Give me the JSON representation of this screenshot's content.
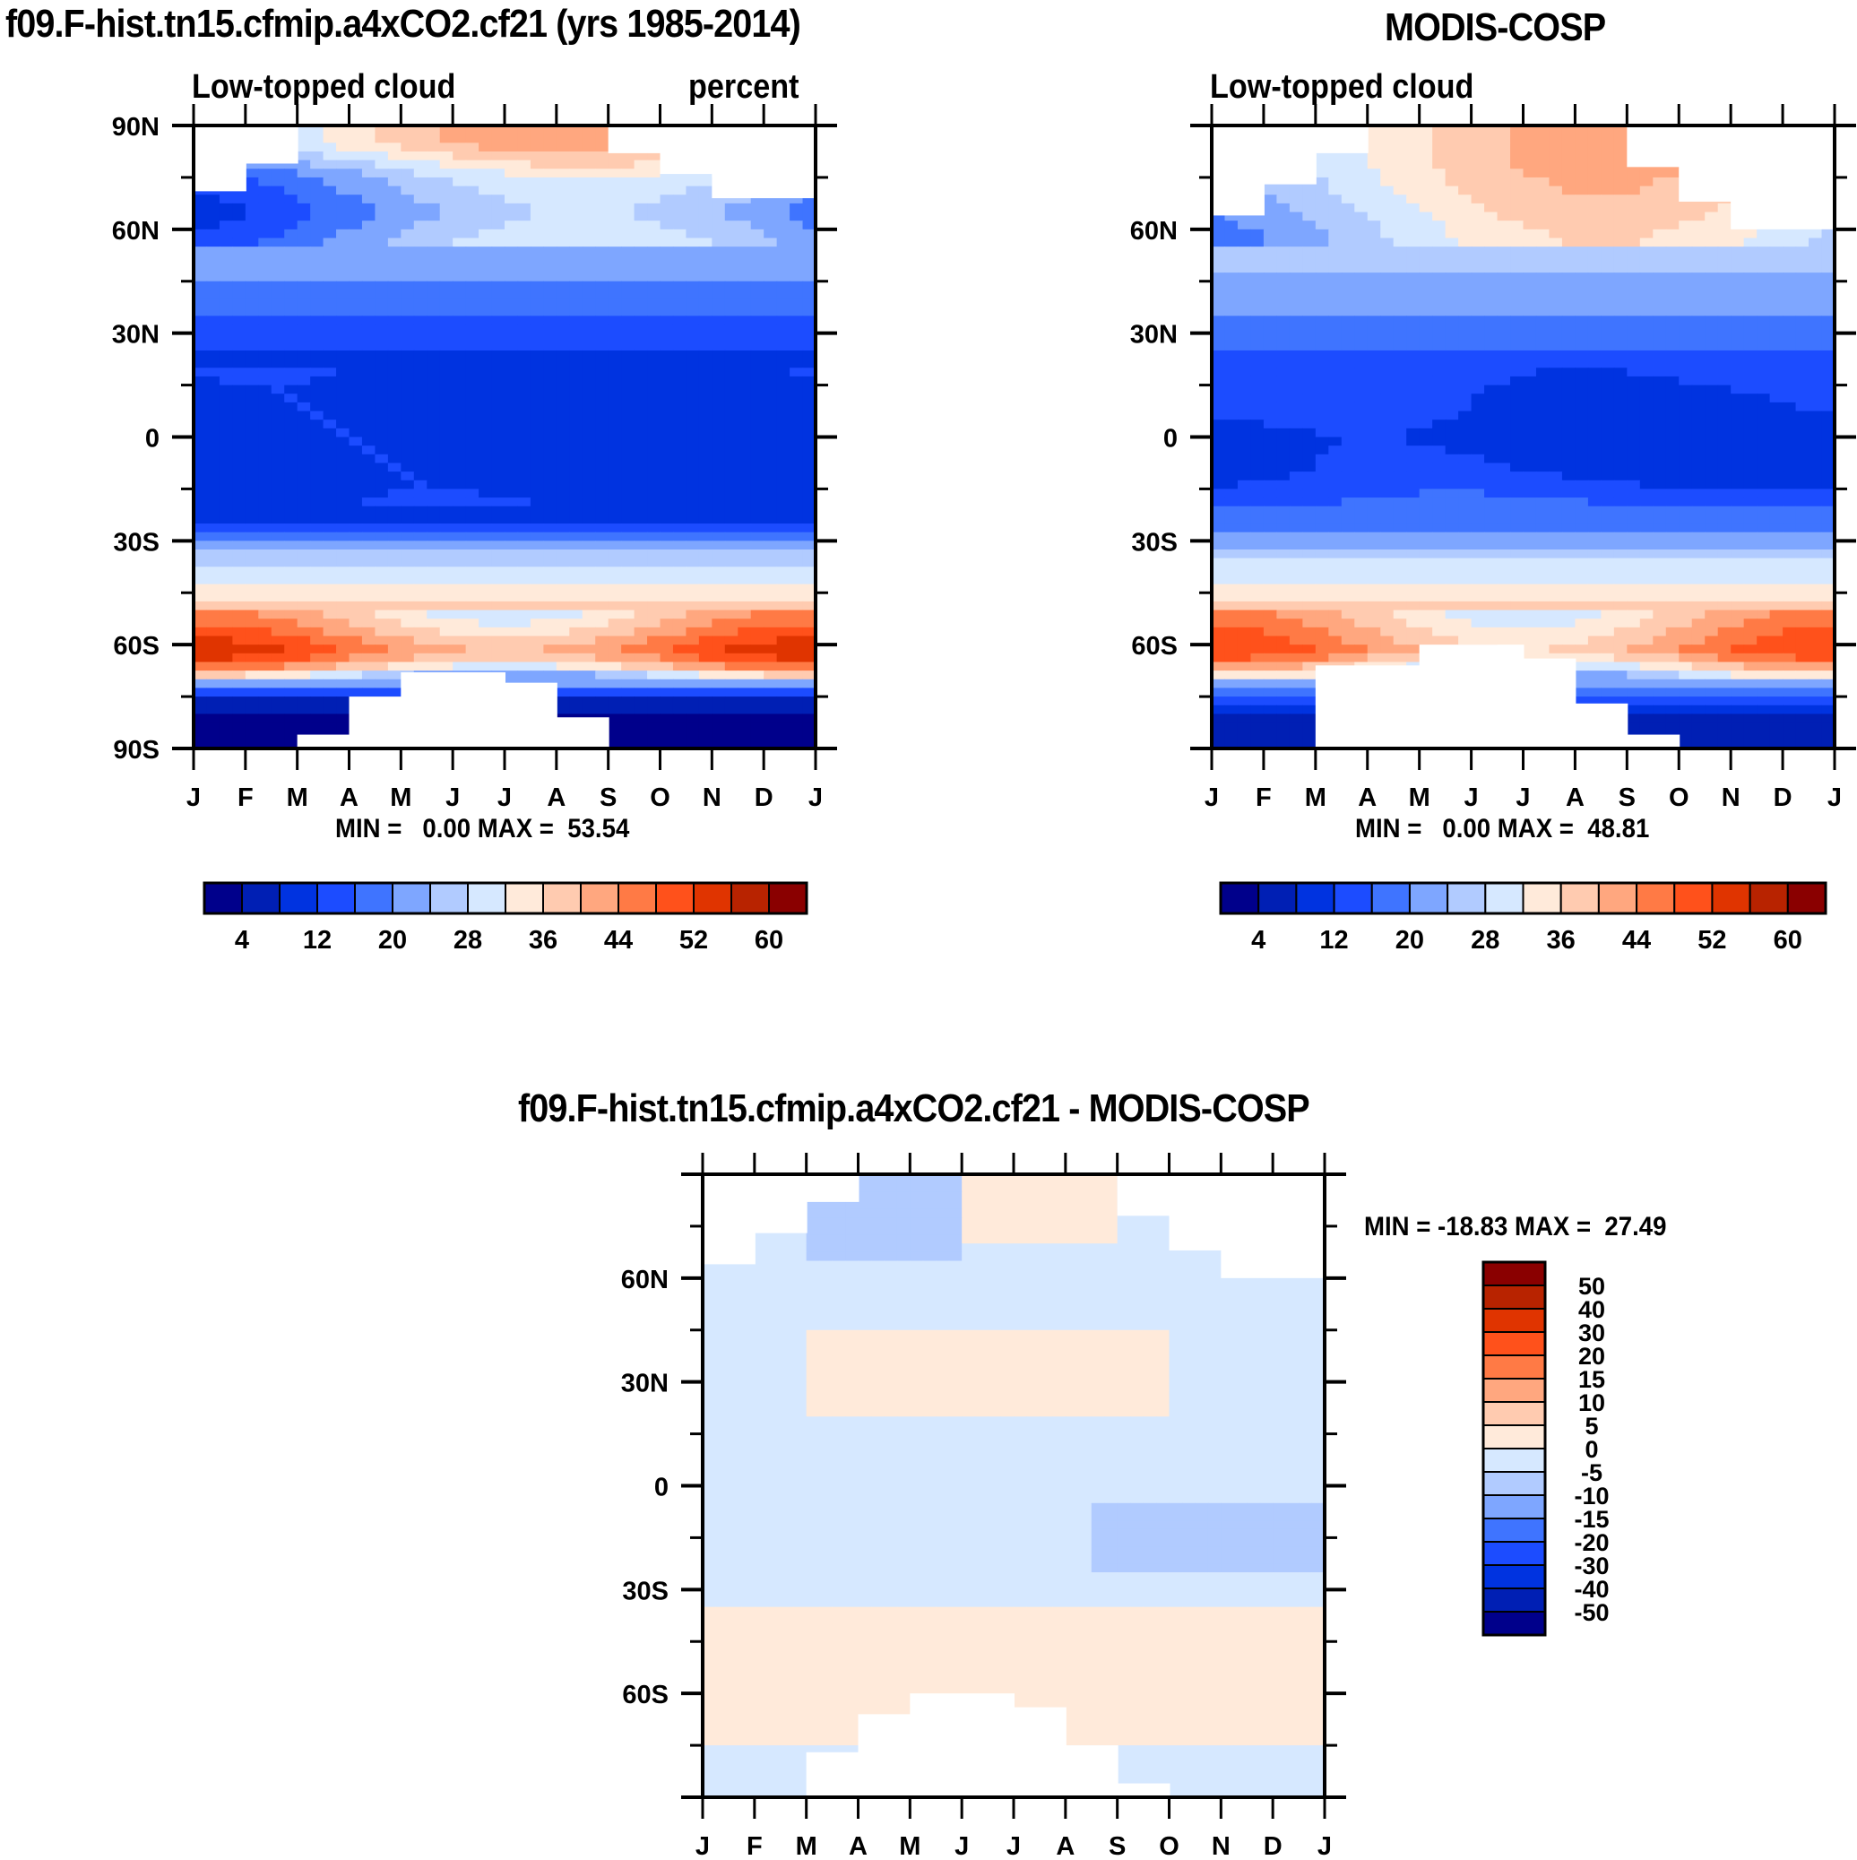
{
  "chart_data": [
    {
      "type": "heatmap",
      "subtype": "filled-contour",
      "id": "model",
      "title": "f09.F-hist.tn15.cfmip.a4xCO2.cf21 (yrs 1985-2014)",
      "left_subtitle": "Low-topped cloud",
      "right_subtitle": "percent",
      "xlabel": "",
      "ylabel": "",
      "x_tick_labels": [
        "J",
        "F",
        "M",
        "A",
        "M",
        "J",
        "J",
        "A",
        "S",
        "O",
        "N",
        "D",
        "J"
      ],
      "y_tick_labels": [
        "90N",
        "60N",
        "30N",
        "0",
        "30S",
        "60S",
        "90S"
      ],
      "y_range": [
        -90,
        90
      ],
      "x_range_months": [
        0,
        12
      ],
      "min_max_text": "MIN =   0.00 MAX =  53.54",
      "min": 0.0,
      "max": 53.54,
      "colorbar": {
        "orientation": "horizontal",
        "levels": [
          4,
          8,
          12,
          16,
          20,
          24,
          28,
          32,
          36,
          40,
          44,
          48,
          52,
          56,
          60
        ],
        "labels": [
          "4",
          "12",
          "20",
          "28",
          "36",
          "44",
          "52",
          "60"
        ],
        "colors": [
          "#00008b",
          "#001fb4",
          "#0033e0",
          "#1c4cff",
          "#3f74ff",
          "#7ea6ff",
          "#b1cbff",
          "#d6e8ff",
          "#ffeada",
          "#ffcbb0",
          "#ffa77f",
          "#ff7a45",
          "#ff511b",
          "#e03400",
          "#b82300",
          "#8a0000"
        ]
      },
      "zonal_profile": {
        "lat": [
          85,
          75,
          65,
          55,
          45,
          35,
          25,
          15,
          5,
          -5,
          -15,
          -25,
          -32,
          -38,
          -45,
          -52,
          -58,
          -62,
          -66,
          -70,
          -75,
          -80,
          -85
        ],
        "value": [
          34,
          22,
          18,
          22,
          20,
          16,
          12,
          10,
          10,
          10,
          10,
          12,
          22,
          30,
          34,
          38,
          44,
          48,
          40,
          24,
          8,
          4,
          2
        ]
      },
      "missing_regions": "white steps at high latitudes (polar night, no MODIS data)"
    },
    {
      "type": "heatmap",
      "subtype": "filled-contour",
      "id": "obs",
      "title": "MODIS-COSP",
      "left_subtitle": "Low-topped cloud",
      "x_tick_labels": [
        "J",
        "F",
        "M",
        "A",
        "M",
        "J",
        "J",
        "A",
        "S",
        "O",
        "N",
        "D",
        "J"
      ],
      "y_tick_labels": [
        "",
        "60N",
        "30N",
        "0",
        "30S",
        "60S",
        ""
      ],
      "y_range": [
        -90,
        90
      ],
      "x_range_months": [
        0,
        12
      ],
      "min_max_text": "MIN =   0.00 MAX =  48.81",
      "min": 0.0,
      "max": 48.81,
      "colorbar": {
        "orientation": "horizontal",
        "levels": [
          4,
          8,
          12,
          16,
          20,
          24,
          28,
          32,
          36,
          40,
          44,
          48,
          52,
          56,
          60
        ],
        "labels": [
          "4",
          "12",
          "20",
          "28",
          "36",
          "44",
          "52",
          "60"
        ],
        "colors": [
          "#00008b",
          "#001fb4",
          "#0033e0",
          "#1c4cff",
          "#3f74ff",
          "#7ea6ff",
          "#b1cbff",
          "#d6e8ff",
          "#ffeada",
          "#ffcbb0",
          "#ffa77f",
          "#ff7a45",
          "#ff511b",
          "#e03400",
          "#b82300",
          "#8a0000"
        ]
      },
      "zonal_profile": {
        "lat": [
          80,
          70,
          60,
          50,
          40,
          30,
          20,
          10,
          0,
          -10,
          -20,
          -30,
          -38,
          -45,
          -52,
          -58,
          -62,
          -66,
          -70,
          -75,
          -80,
          -85
        ],
        "value": [
          32,
          30,
          27,
          25,
          22,
          18,
          14,
          12,
          10,
          11,
          16,
          22,
          30,
          34,
          38,
          42,
          44,
          36,
          24,
          14,
          8,
          4
        ]
      }
    },
    {
      "type": "heatmap",
      "subtype": "filled-contour",
      "id": "diff",
      "title": "f09.F-hist.tn15.cfmip.a4xCO2.cf21 - MODIS-COSP",
      "x_tick_labels": [
        "J",
        "F",
        "M",
        "A",
        "M",
        "J",
        "J",
        "A",
        "S",
        "O",
        "N",
        "D",
        "J"
      ],
      "y_tick_labels": [
        "",
        "60N",
        "30N",
        "0",
        "30S",
        "60S",
        ""
      ],
      "y_range": [
        -90,
        90
      ],
      "x_range_months": [
        0,
        12
      ],
      "min_max_text": "MIN = -18.83 MAX =  27.49",
      "min": -18.83,
      "max": 27.49,
      "colorbar": {
        "orientation": "vertical",
        "levels": [
          -50,
          -40,
          -30,
          -20,
          -15,
          -10,
          -5,
          0,
          5,
          10,
          15,
          20,
          30,
          40,
          50
        ],
        "labels": [
          "50",
          "40",
          "30",
          "20",
          "15",
          "10",
          "5",
          "0",
          "-5",
          "-10",
          "-15",
          "-20",
          "-30",
          "-40",
          "-50"
        ],
        "colors": [
          "#00008b",
          "#001fb4",
          "#0033e0",
          "#1c4cff",
          "#3f74ff",
          "#7ea6ff",
          "#b1cbff",
          "#d6e8ff",
          "#ffeada",
          "#ffcbb0",
          "#ffa77f",
          "#ff7a45",
          "#ff511b",
          "#e03400",
          "#b82300",
          "#8a0000"
        ]
      }
    }
  ]
}
